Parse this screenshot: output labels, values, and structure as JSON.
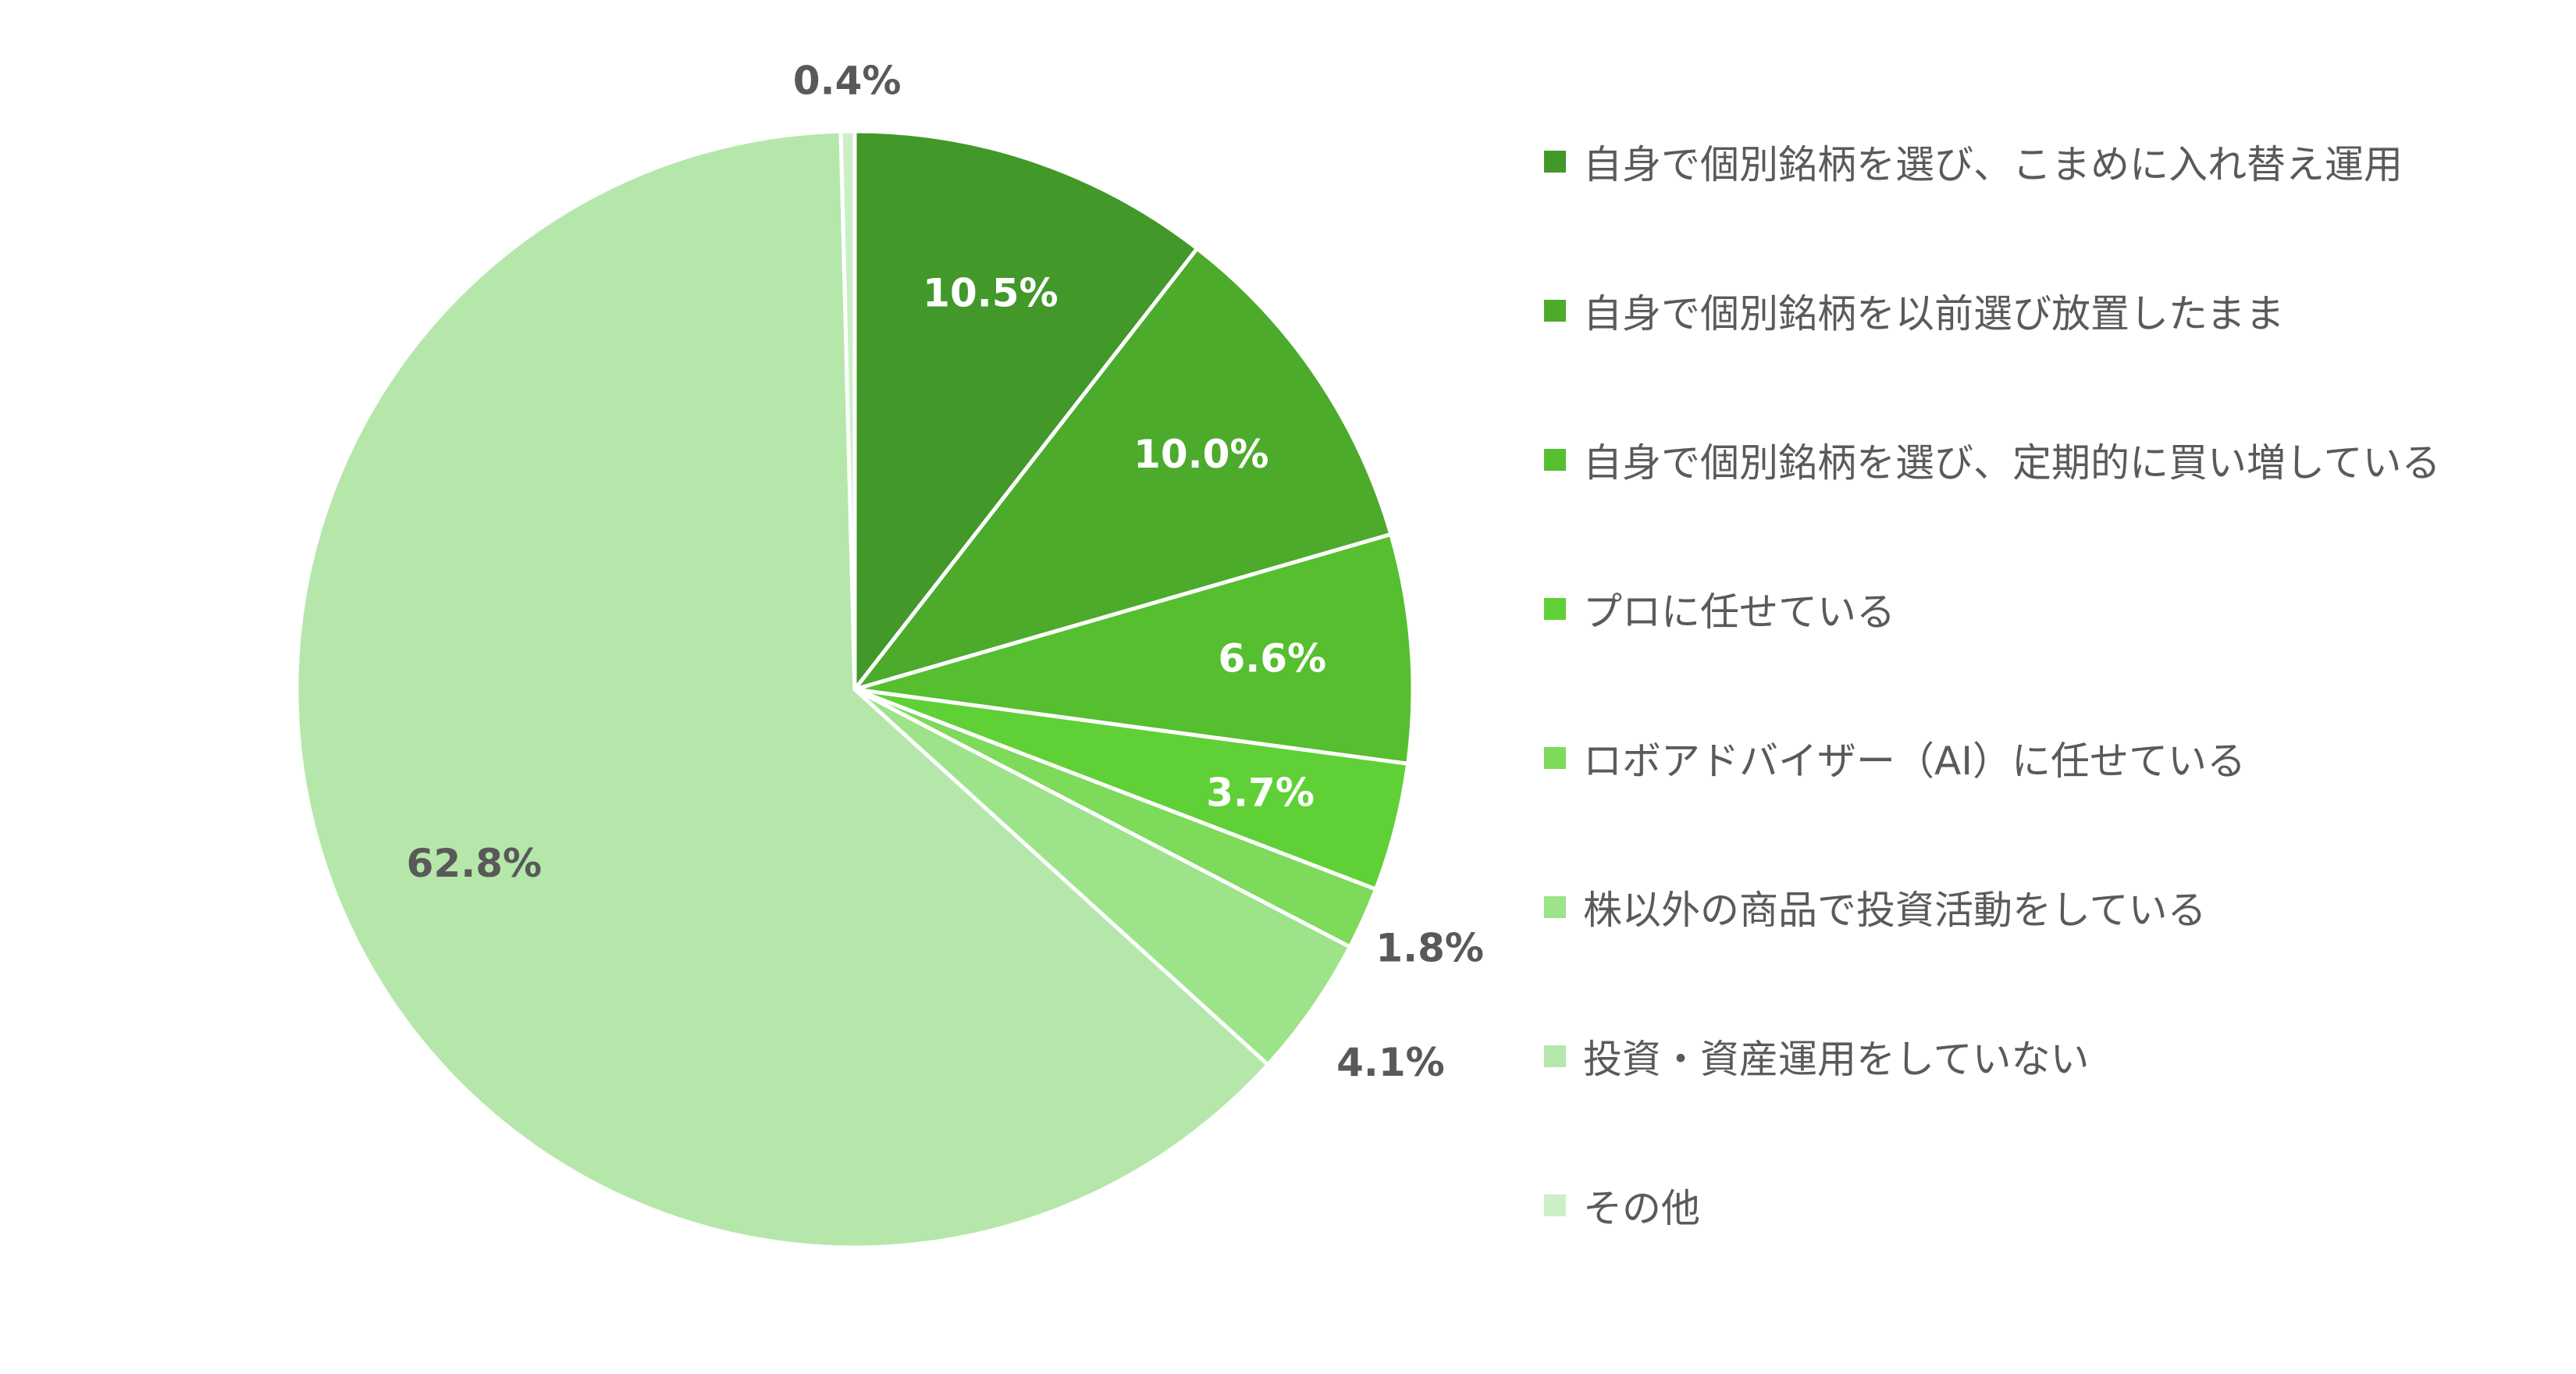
{
  "chart_data": {
    "type": "pie",
    "title": "",
    "start_angle_deg": 0,
    "direction": "clockwise",
    "slices": [
      {
        "label": "自身で個別銘柄を選び、こまめに入れ替え運用",
        "value": 10.5,
        "display": "10.5%",
        "color": "#43982a",
        "label_placement": "inside",
        "label_color": "#ffffff"
      },
      {
        "label": "自身で個別銘柄を以前選び放置したまま",
        "value": 10.0,
        "display": "10.0%",
        "color": "#4cab2b",
        "label_placement": "inside",
        "label_color": "#ffffff"
      },
      {
        "label": "自身で個別銘柄を選び、定期的に買い増している",
        "value": 6.6,
        "display": "6.6%",
        "color": "#55bf2f",
        "label_placement": "inside",
        "label_color": "#ffffff"
      },
      {
        "label": "プロに任せている",
        "value": 3.7,
        "display": "3.7%",
        "color": "#5fd136",
        "label_placement": "inside",
        "label_color": "#ffffff"
      },
      {
        "label": "ロボアドバイザー（AI）に任せている",
        "value": 1.8,
        "display": "1.8%",
        "color": "#7dda5a",
        "label_placement": "outside",
        "label_color": "#595959"
      },
      {
        "label": "株以外の商品で投資活動をしている",
        "value": 4.1,
        "display": "4.1%",
        "color": "#9ce38a",
        "label_placement": "outside",
        "label_color": "#595959"
      },
      {
        "label": "投資・資産運用をしていない",
        "value": 62.8,
        "display": "62.8%",
        "color": "#b5e7ab",
        "label_placement": "inside",
        "label_color": "#595959"
      },
      {
        "label": "その他",
        "value": 0.4,
        "display": "0.4%",
        "color": "#ccf0c6",
        "label_placement": "outside",
        "label_color": "#595959"
      }
    ],
    "legend_position": "right"
  }
}
